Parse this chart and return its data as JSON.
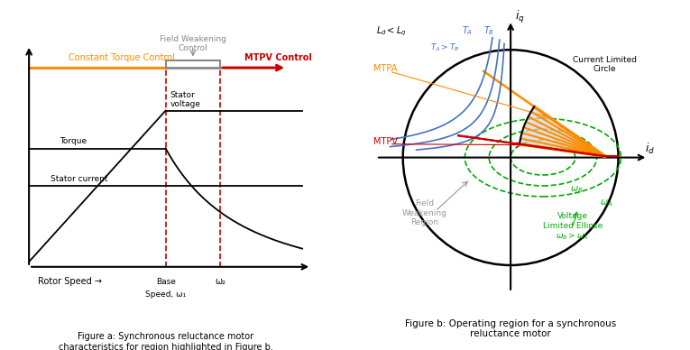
{
  "fig_a": {
    "title": "Figure a: Synchronous reluctance motor\ncharacteristics for region highlighted in Figure b.",
    "xlabel": "Rotor Speed →",
    "base_speed_label": "Base\nSpeed, ω₁",
    "omega2_label": "ω₂",
    "constant_torque_label": "Constant Torque Control",
    "field_weakening_label": "Field Weakening\nControl",
    "mtpv_label": "MTPV Control",
    "stator_voltage_label": "Stator\nvoltage",
    "torque_label": "Torque",
    "stator_current_label": "Stator current",
    "orange_color": "#FF8C00",
    "red_color": "#CC0000",
    "gray_color": "#888888"
  },
  "fig_b": {
    "title": "Figure b: Operating region for a synchronous\nreluctance motor",
    "iq_label": "i_q",
    "id_label": "i_d",
    "Ld_Lq_label": "L_d < L_q",
    "TA_label": "T_A",
    "TB_label": "T_B",
    "TA_TB_label": "T_A > T_B",
    "MTPA_label": "MTPA",
    "MTPV_label": "MTPV",
    "current_circle_label": "Current Limited\nCircle",
    "voltage_ellipse_label": "Voltage\nLimited Ellipse\nω_B > ω_A",
    "omega_B_label": "ω_B",
    "omega_A_label": "ω_A",
    "field_weakening_region_label": "Field\nWeakening\nRegion",
    "orange_color": "#FF8C00",
    "red_color": "#CC0000",
    "blue_color": "#4472C4",
    "green_color": "#00AA00",
    "gray_color": "#999999"
  }
}
